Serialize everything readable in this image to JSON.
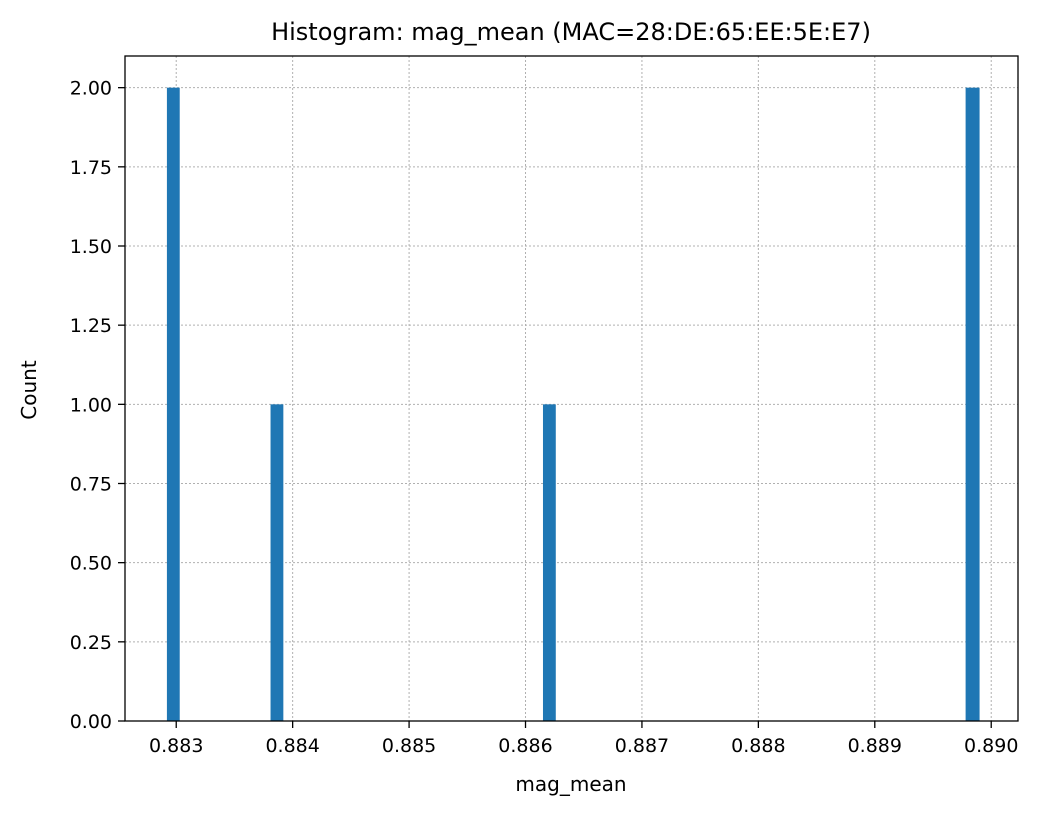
{
  "chart_data": {
    "type": "bar",
    "title": "Histogram: mag_mean (MAC=28:DE:65:EE:5E:E7)",
    "xlabel": "mag_mean",
    "ylabel": "Count",
    "xlim": [
      0.88256,
      0.89023
    ],
    "ylim": [
      0,
      2.1
    ],
    "x_ticks": [
      0.883,
      0.884,
      0.885,
      0.886,
      0.887,
      0.888,
      0.889,
      0.89
    ],
    "x_tick_labels": [
      "0.883",
      "0.884",
      "0.885",
      "0.886",
      "0.887",
      "0.888",
      "0.889",
      "0.890"
    ],
    "y_ticks": [
      0,
      0.25,
      0.5,
      0.75,
      1.0,
      1.25,
      1.5,
      1.75,
      2.0
    ],
    "y_tick_labels": [
      "0.00",
      "0.25",
      "0.50",
      "0.75",
      "1.00",
      "1.25",
      "1.50",
      "1.75",
      "2.00"
    ],
    "bars": [
      {
        "x_start": 0.88292,
        "x_end": 0.88303,
        "value": 2
      },
      {
        "x_start": 0.88381,
        "x_end": 0.88392,
        "value": 1
      },
      {
        "x_start": 0.88615,
        "x_end": 0.88626,
        "value": 1
      },
      {
        "x_start": 0.88978,
        "x_end": 0.8899,
        "value": 2
      }
    ],
    "grid": true,
    "bar_color": "#1f77b4"
  }
}
